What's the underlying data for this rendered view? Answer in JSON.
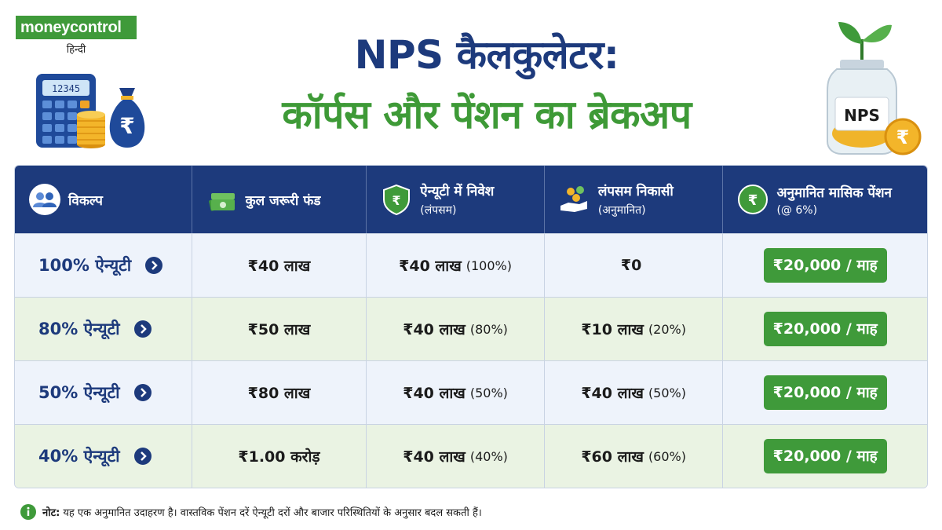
{
  "brand": {
    "name_part1": "money",
    "name_part2": "control",
    "sub": "हिन्दी"
  },
  "left_art": {
    "calculator_display": "12345",
    "bag_symbol": "₹"
  },
  "right_art": {
    "jar_label": "NPS",
    "coin_symbol": "₹"
  },
  "title": {
    "line1": "NPS कैलकुलेटर:",
    "line2": "कॉर्पस और पेंशन का ब्रेकअप"
  },
  "colors": {
    "navy": "#1d3a7c",
    "green": "#3f9a3a"
  },
  "table": {
    "headers": [
      {
        "label": "विकल्प",
        "sub": "",
        "icon": "users-icon"
      },
      {
        "label": "कुल जरूरी फंड",
        "sub": "",
        "icon": "money-stack-icon"
      },
      {
        "label": "ऐन्यूटी में निवेश",
        "sub": "(लंपसम)",
        "icon": "shield-rupee-icon"
      },
      {
        "label": "लंपसम निकासी",
        "sub": "(अनुमानित)",
        "icon": "hand-coins-icon"
      },
      {
        "label": "अनुमानित मासिक पेंशन",
        "sub": "(@ 6%)",
        "icon": "rupee-coin-icon"
      }
    ],
    "rows": [
      {
        "option": "100% ऐन्यूटी",
        "fund": "₹40 लाख",
        "annuity": "₹40 लाख",
        "annuity_pct": "(100%)",
        "lumpsum": "₹0",
        "lumpsum_pct": "",
        "pension": "₹20,000 / माह"
      },
      {
        "option": "80% ऐन्यूटी",
        "fund": "₹50 लाख",
        "annuity": "₹40 लाख",
        "annuity_pct": "(80%)",
        "lumpsum": "₹10 लाख",
        "lumpsum_pct": "(20%)",
        "pension": "₹20,000 / माह"
      },
      {
        "option": "50% ऐन्यूटी",
        "fund": "₹80 लाख",
        "annuity": "₹40 लाख",
        "annuity_pct": "(50%)",
        "lumpsum": "₹40 लाख",
        "lumpsum_pct": "(50%)",
        "pension": "₹20,000 / माह"
      },
      {
        "option": "40% ऐन्यूटी",
        "fund": "₹1.00 करोड़",
        "annuity": "₹40 लाख",
        "annuity_pct": "(40%)",
        "lumpsum": "₹60 लाख",
        "lumpsum_pct": "(60%)",
        "pension": "₹20,000 / माह"
      }
    ]
  },
  "note": {
    "label": "नोट:",
    "text": "यह एक अनुमानित उदाहरण है। वास्तविक पेंशन दरें ऐन्यूटी दरों और बाजार परिस्थितियों के अनुसार बदल सकती हैं।"
  }
}
